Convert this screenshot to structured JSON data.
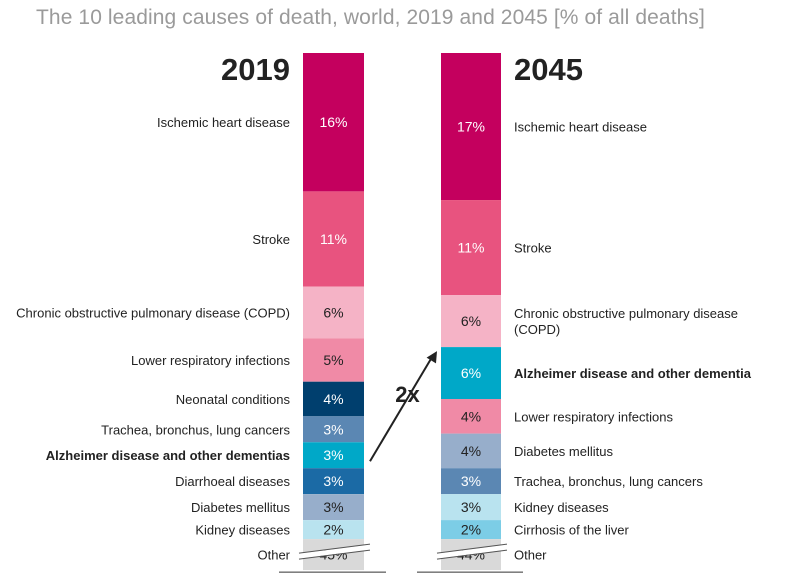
{
  "chart_data": {
    "type": "bar",
    "title": "The 10 leading causes of death, world, 2019 and 2045 [% of all deaths]",
    "unit": "%",
    "multiplier_label": "2x",
    "series": [
      {
        "name": "2019",
        "segments": [
          {
            "label": "Ischemic heart disease",
            "value": 16,
            "value_label": "16%",
            "color": "#c4005e",
            "bold": false
          },
          {
            "label": "Stroke",
            "value": 11,
            "value_label": "11%",
            "color": "#e8537f",
            "bold": false
          },
          {
            "label": "Chronic obstructive pulmonary disease (COPD)",
            "value": 6,
            "value_label": "6%",
            "color": "#f5b3c6",
            "bold": false
          },
          {
            "label": "Lower respiratory infections",
            "value": 5,
            "value_label": "5%",
            "color": "#f08aa6",
            "bold": false
          },
          {
            "label": "Neonatal conditions",
            "value": 4,
            "value_label": "4%",
            "color": "#003f6e",
            "bold": false
          },
          {
            "label": "Trachea, bronchus, lung cancers",
            "value": 3,
            "value_label": "3%",
            "color": "#5b87b3",
            "bold": false
          },
          {
            "label": "Alzheimer disease and other dementias",
            "value": 3,
            "value_label": "3%",
            "color": "#00a8c8",
            "bold": true
          },
          {
            "label": "Diarrhoeal diseases",
            "value": 3,
            "value_label": "3%",
            "color": "#1b6aa5",
            "bold": false
          },
          {
            "label": "Diabetes mellitus",
            "value": 3,
            "value_label": "3%",
            "color": "#97aecb",
            "bold": false
          },
          {
            "label": "Kidney diseases",
            "value": 2,
            "value_label": "2%",
            "color": "#b9e3ef",
            "bold": false
          },
          {
            "label": "Other",
            "value": 45,
            "value_label": "45%",
            "color": "#d9d9d9",
            "bold": false
          }
        ]
      },
      {
        "name": "2045",
        "segments": [
          {
            "label": "Ischemic heart disease",
            "value": 17,
            "value_label": "17%",
            "color": "#c4005e",
            "bold": false
          },
          {
            "label": "Stroke",
            "value": 11,
            "value_label": "11%",
            "color": "#e8537f",
            "bold": false
          },
          {
            "label": "Chronic obstructive pulmonary disease (COPD)",
            "value": 6,
            "value_label": "6%",
            "color": "#f5b3c6",
            "bold": false
          },
          {
            "label": "Alzheimer disease and other dementia",
            "value": 6,
            "value_label": "6%",
            "color": "#00a8c8",
            "bold": true
          },
          {
            "label": "Lower respiratory infections",
            "value": 4,
            "value_label": "4%",
            "color": "#f08aa6",
            "bold": false
          },
          {
            "label": "Diabetes mellitus",
            "value": 4,
            "value_label": "4%",
            "color": "#97aecb",
            "bold": false
          },
          {
            "label": "Trachea, bronchus, lung cancers",
            "value": 3,
            "value_label": "3%",
            "color": "#5b87b3",
            "bold": false
          },
          {
            "label": "Kidney diseases",
            "value": 3,
            "value_label": "3%",
            "color": "#b9e3ef",
            "bold": false
          },
          {
            "label": "Cirrhosis of the liver",
            "value": 2,
            "value_label": "2%",
            "color": "#7ccde6",
            "bold": false
          },
          {
            "label": "Other",
            "value": 44,
            "value_label": "44%",
            "color": "#d9d9d9",
            "bold": false
          }
        ]
      }
    ]
  }
}
